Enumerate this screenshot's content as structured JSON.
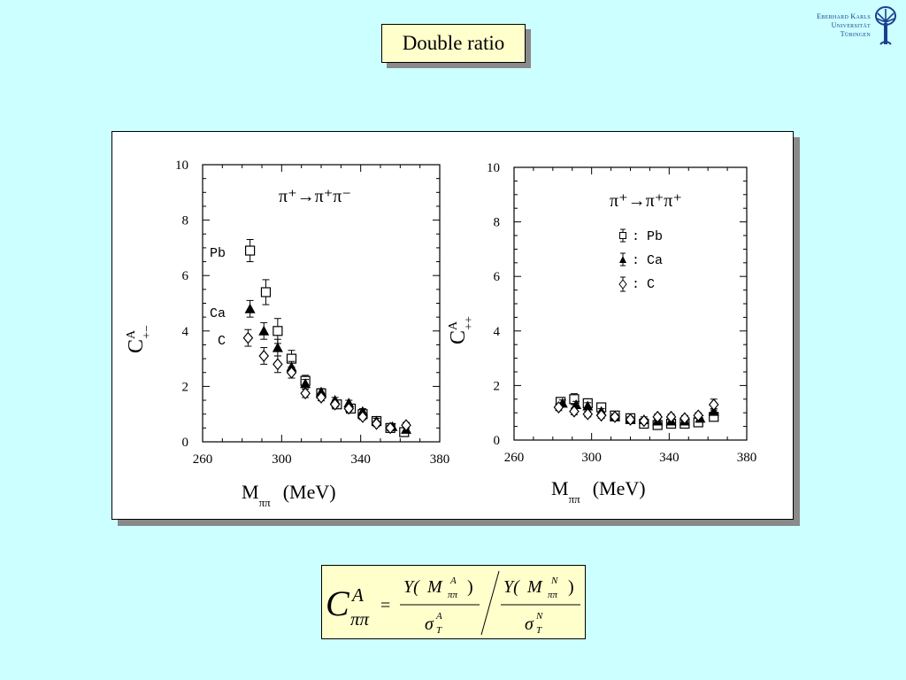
{
  "slide_title": "Double ratio",
  "logo": {
    "line1": "Eberhard Karls",
    "line2": "Universität",
    "line3": "Tübingen",
    "color": "#1a3f8f"
  },
  "formula": {
    "lhs": "C",
    "lhs_sup": "A",
    "lhs_sub": "ππ",
    "equals": "=",
    "num1_Y": "Y(",
    "num1_M": "M",
    "num1_sup": "A",
    "num1_sub": "ππ",
    "num1_close": ")",
    "den1_sigma": "σ",
    "den1_sup": "A",
    "den1_sub": "T",
    "num2_Y": "Y(",
    "num2_M": "M",
    "num2_sup": "N",
    "num2_sub": "ππ",
    "num2_close": ")",
    "den2_sigma": "σ",
    "den2_sup": "N",
    "den2_sub": "T"
  },
  "chart_data": [
    {
      "type": "scatter",
      "reaction_label": "π⁺→π⁺π⁻",
      "ylabel_main": "C",
      "ylabel_sup": "A",
      "ylabel_sub": "+−",
      "xlabel_main": "M",
      "xlabel_sub": "ππ",
      "xlabel_unit": "(MeV)",
      "xlim": [
        260,
        380
      ],
      "ylim": [
        0,
        10
      ],
      "x_ticks": [
        "260",
        "300",
        "340",
        "380"
      ],
      "y_ticks": [
        "0",
        "2",
        "4",
        "6",
        "8",
        "10"
      ],
      "series": [
        {
          "name": "Pb",
          "marker": "square",
          "x": [
            284,
            292,
            298,
            305,
            312,
            320,
            328,
            335,
            341,
            348,
            355,
            362
          ],
          "y": [
            6.9,
            5.4,
            4.0,
            3.0,
            2.2,
            1.75,
            1.35,
            1.2,
            1.0,
            0.75,
            0.5,
            0.35
          ],
          "err": [
            0.4,
            0.45,
            0.45,
            0.3,
            0.2,
            0.15,
            0.1,
            0.1,
            0.1,
            0.1,
            0.1,
            0.1
          ]
        },
        {
          "name": "Ca",
          "marker": "triangle",
          "x": [
            284,
            291,
            298,
            305,
            312,
            320,
            327,
            334,
            341,
            348,
            356,
            363
          ],
          "y": [
            4.8,
            4.0,
            3.4,
            2.7,
            2.1,
            1.8,
            1.5,
            1.4,
            1.1,
            0.75,
            0.55,
            0.45
          ],
          "err": [
            0.3,
            0.3,
            0.3,
            0.2,
            0.15,
            0.12,
            0.1,
            0.1,
            0.1,
            0.1,
            0.1,
            0.1
          ]
        },
        {
          "name": "C",
          "marker": "diamond",
          "x": [
            283,
            291,
            298,
            305,
            312,
            320,
            327,
            334,
            341,
            348,
            355,
            363
          ],
          "y": [
            3.75,
            3.1,
            2.8,
            2.5,
            1.75,
            1.6,
            1.35,
            1.2,
            0.9,
            0.65,
            0.5,
            0.6
          ],
          "err": [
            0.3,
            0.3,
            0.3,
            0.2,
            0.15,
            0.12,
            0.1,
            0.1,
            0.1,
            0.1,
            0.1,
            0.1
          ]
        }
      ]
    },
    {
      "type": "scatter",
      "reaction_label": "π⁺→π⁺π⁺",
      "ylabel_main": "C",
      "ylabel_sup": "A",
      "ylabel_sub": "++",
      "xlabel_main": "M",
      "xlabel_sub": "ππ",
      "xlabel_unit": "(MeV)",
      "xlim": [
        260,
        380
      ],
      "ylim": [
        0,
        10
      ],
      "x_ticks": [
        "260",
        "300",
        "340",
        "380"
      ],
      "y_ticks": [
        "0",
        "2",
        "4",
        "6",
        "8",
        "10"
      ],
      "legend": [
        {
          "colon": ":",
          "label": "Pb",
          "marker": "square"
        },
        {
          "colon": ":",
          "label": "Ca",
          "marker": "triangle"
        },
        {
          "colon": ":",
          "label": "C",
          "marker": "diamond"
        }
      ],
      "series": [
        {
          "name": "Pb",
          "marker": "square",
          "x": [
            284,
            291,
            298,
            305,
            312,
            320,
            327,
            334,
            341,
            348,
            355,
            363
          ],
          "y": [
            1.4,
            1.5,
            1.35,
            1.2,
            0.9,
            0.8,
            0.6,
            0.55,
            0.6,
            0.6,
            0.65,
            0.85
          ],
          "err": [
            0.15,
            0.2,
            0.15,
            0.15,
            0.1,
            0.1,
            0.1,
            0.1,
            0.1,
            0.1,
            0.1,
            0.1
          ]
        },
        {
          "name": "Ca",
          "marker": "triangle",
          "x": [
            285,
            292,
            298,
            305,
            312,
            320,
            327,
            334,
            341,
            348,
            356,
            363
          ],
          "y": [
            1.35,
            1.3,
            1.25,
            1.05,
            0.85,
            0.75,
            0.75,
            0.7,
            0.7,
            0.7,
            0.8,
            1.05
          ],
          "err": [
            0.12,
            0.12,
            0.12,
            0.1,
            0.1,
            0.1,
            0.1,
            0.1,
            0.1,
            0.1,
            0.1,
            0.1
          ]
        },
        {
          "name": "C",
          "marker": "diamond",
          "x": [
            283,
            291,
            298,
            305,
            312,
            320,
            327,
            334,
            341,
            348,
            355,
            363
          ],
          "y": [
            1.2,
            1.05,
            0.95,
            0.9,
            0.85,
            0.75,
            0.7,
            0.85,
            0.85,
            0.8,
            0.9,
            1.3
          ],
          "err": [
            0.12,
            0.12,
            0.1,
            0.1,
            0.1,
            0.1,
            0.1,
            0.1,
            0.1,
            0.1,
            0.1,
            0.2
          ]
        }
      ]
    }
  ]
}
